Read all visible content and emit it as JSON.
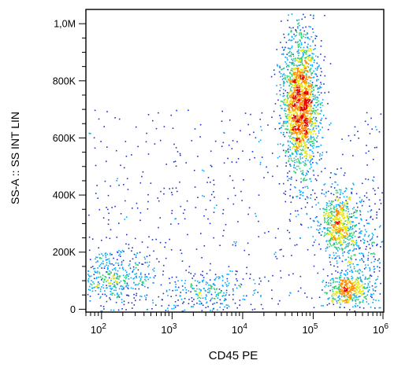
{
  "chart_data": {
    "type": "scatter",
    "subtype": "flow-cytometry-density-dot-plot",
    "xlabel": "CD45 PE",
    "ylabel": "SS-A :: SS INT LIN",
    "x_scale": "log",
    "xlim": [
      60,
      1000000
    ],
    "x_ticks": [
      {
        "value": 100,
        "base": "10",
        "exp": "2"
      },
      {
        "value": 1000,
        "base": "10",
        "exp": "3"
      },
      {
        "value": 10000,
        "base": "10",
        "exp": "4"
      },
      {
        "value": 100000,
        "base": "10",
        "exp": "5"
      },
      {
        "value": 1000000,
        "base": "10",
        "exp": "6"
      }
    ],
    "y_scale": "linear",
    "ylim": [
      -10000,
      1050000
    ],
    "y_ticks": [
      {
        "value": 0,
        "label": "0"
      },
      {
        "value": 200000,
        "label": "200K"
      },
      {
        "value": 400000,
        "label": "400K"
      },
      {
        "value": 600000,
        "label": "600K"
      },
      {
        "value": 800000,
        "label": "800K"
      },
      {
        "value": 1000000,
        "label": "1,0M"
      }
    ],
    "grid": false,
    "density_colors": [
      "#1a2fd0",
      "#00a6ff",
      "#2ecc71",
      "#e6e600",
      "#ff8c00",
      "#e60000"
    ],
    "populations": [
      {
        "x_center": 300000,
        "x_log_spread": 0.15,
        "y_center": 70000,
        "y_spread": 30000,
        "weight": 0.07
      },
      {
        "x_center": 220000,
        "x_log_spread": 0.14,
        "y_center": 300000,
        "y_spread": 60000,
        "weight": 0.11
      },
      {
        "x_center": 65000,
        "x_log_spread": 0.13,
        "y_center": 720000,
        "y_spread": 130000,
        "weight": 0.36
      },
      {
        "x_center": 150,
        "x_log_spread": 0.28,
        "y_center": 110000,
        "y_spread": 50000,
        "weight": 0.08
      },
      {
        "x_center": 3000,
        "x_log_spread": 0.32,
        "y_center": 60000,
        "y_spread": 40000,
        "weight": 0.05
      },
      {
        "x_center": 500000,
        "x_log_spread": 0.2,
        "y_center": 180000,
        "y_spread": 120000,
        "weight": 0.06
      }
    ]
  }
}
